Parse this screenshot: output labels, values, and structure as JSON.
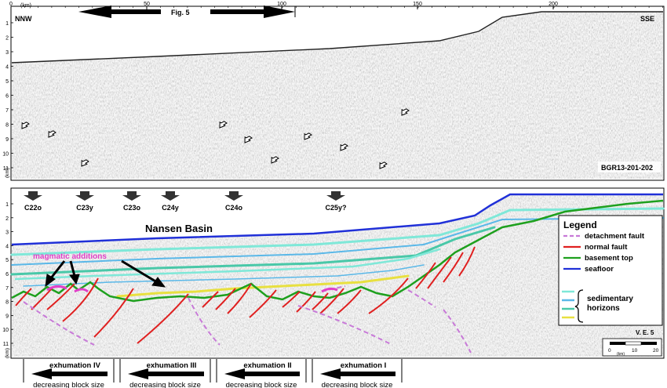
{
  "top_panel": {
    "km_axis": {
      "unit": "(km)",
      "ticks": [
        "0",
        "50",
        "100",
        "150",
        "200"
      ]
    },
    "depth_axis": {
      "unit": "(km)",
      "ticks": [
        "1",
        "2",
        "3",
        "4",
        "5",
        "6",
        "7",
        "8",
        "9",
        "10",
        "11"
      ]
    },
    "left_direction": "NNW",
    "right_direction": "SSE",
    "figure_ref": "Fig. 5",
    "profile_id": "BGR13-201-202"
  },
  "bottom_panel": {
    "depth_axis": {
      "unit": "(km)",
      "ticks": [
        "1",
        "2",
        "3",
        "4",
        "5",
        "6",
        "7",
        "8",
        "9",
        "10",
        "11"
      ]
    },
    "magnetic_anomalies": [
      "C22o",
      "C23y",
      "C23o",
      "C24y",
      "C24o",
      "C25y?"
    ],
    "basin_label": "Nansen Basin",
    "annotation": "magmatic additions",
    "annotation_color": "#e040c8",
    "ve_label": "V. E. 5",
    "scale_bar": {
      "unit": "(km)",
      "ticks": [
        "0",
        "10",
        "20"
      ]
    },
    "legend": {
      "title": "Legend",
      "items": [
        {
          "label": "detachment fault",
          "color": "#c87ad8",
          "style": "dashed"
        },
        {
          "label": "normal fault",
          "color": "#e02020",
          "style": "solid"
        },
        {
          "label": "basement top",
          "color": "#1ea01e",
          "style": "solid"
        },
        {
          "label": "seafloor",
          "color": "#2030d8",
          "style": "solid"
        }
      ],
      "horizons": {
        "label_line1": "sedimentary",
        "label_line2": "horizons",
        "colors": [
          "#7fe8d8",
          "#5ab8e8",
          "#49c8a8",
          "#e8e040"
        ]
      }
    },
    "exhumation_phases": [
      {
        "label": "exhumation  IV",
        "caption": "decreasing block size"
      },
      {
        "label": "exhumation III",
        "caption": "decreasing block size"
      },
      {
        "label": "exhumation II",
        "caption": "decreasing block size"
      },
      {
        "label": "exhumation I",
        "caption": "decreasing block size"
      }
    ]
  }
}
